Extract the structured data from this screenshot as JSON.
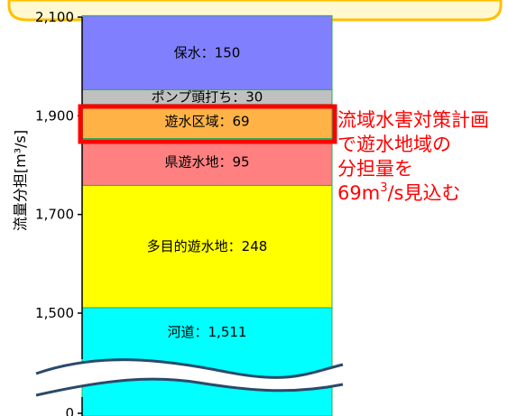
{
  "chart_data": {
    "type": "bar",
    "stacked": true,
    "ylabel": "流量分担[m³/s]",
    "y_ticks": [
      "0",
      "1,500",
      "1,700",
      "1,900",
      "2,100"
    ],
    "ylim": [
      1500,
      2100
    ],
    "axis_break": true,
    "segments": [
      {
        "name": "河道",
        "value": 1511,
        "label": "河道：1,511",
        "color": "#00ffff"
      },
      {
        "name": "多目的遊水地",
        "value": 248,
        "label": "多目的遊水地：248",
        "color": "#ffff00"
      },
      {
        "name": "県遊水地",
        "value": 95,
        "label": "県遊水地：95",
        "color": "#ff8080"
      },
      {
        "name": "遊水区域",
        "value": 69,
        "label": "遊水区域：69",
        "color": "#ffb347",
        "highlighted": true
      },
      {
        "name": "ポンプ頭打ち",
        "value": 30,
        "label": "ポンプ頭打ち：30",
        "color": "#c0c0c0"
      },
      {
        "name": "保水",
        "value": 150,
        "label": "保水：150",
        "color": "#8080ff"
      }
    ],
    "annotation": {
      "lines": [
        "流域水害対策計画",
        "で遊水地域の",
        "分担量を"
      ],
      "last_line_prefix": "69m",
      "last_line_sup": "3",
      "last_line_suffix": "/s見込む"
    }
  },
  "colors": {
    "highlight": "#ff0000",
    "top_banner": "#ffc000",
    "axis": "#000000",
    "bar_border": "#33aa55"
  }
}
